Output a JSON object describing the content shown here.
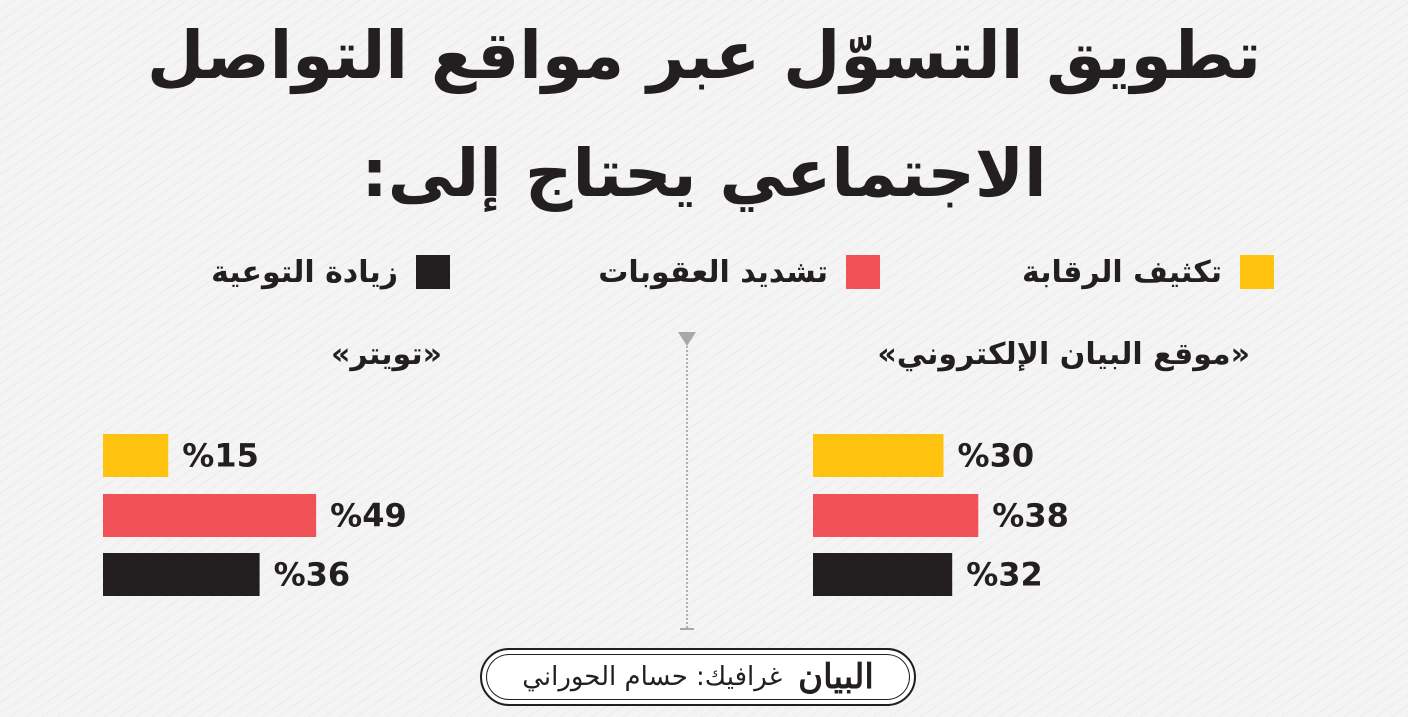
{
  "title_line1": "تطويق التسوّل عبر مواقع التواصل",
  "title_line2": "الاجتماعي يحتاج إلى:",
  "legend": [
    {
      "label": "تكثيف الرقابة",
      "color": "#ffc20e"
    },
    {
      "label": "تشديد العقوبات",
      "color": "#f15258"
    },
    {
      "label": "زيادة التوعية",
      "color": "#231f20"
    }
  ],
  "chart_data": [
    {
      "type": "bar",
      "title": "«موقع البيان الإلكتروني»",
      "categories": [
        "تكثيف الرقابة",
        "تشديد العقوبات",
        "زيادة التوعية"
      ],
      "values": [
        30,
        38,
        32
      ],
      "value_labels": [
        "%30",
        "%38",
        "%32"
      ],
      "colors": [
        "#ffc20e",
        "#f15258",
        "#231f20"
      ],
      "xlim": [
        0,
        100
      ],
      "orientation": "horizontal",
      "grid": false
    },
    {
      "type": "bar",
      "title": "«تويتر»",
      "categories": [
        "تكثيف الرقابة",
        "تشديد العقوبات",
        "زيادة التوعية"
      ],
      "values": [
        15,
        49,
        36
      ],
      "value_labels": [
        "%15",
        "%49",
        "%36"
      ],
      "colors": [
        "#ffc20e",
        "#f15258",
        "#231f20"
      ],
      "xlim": [
        0,
        100
      ],
      "orientation": "horizontal",
      "grid": false
    }
  ],
  "credit": {
    "text": "غرافيك: حسام الحوراني",
    "logo": "البيان"
  }
}
